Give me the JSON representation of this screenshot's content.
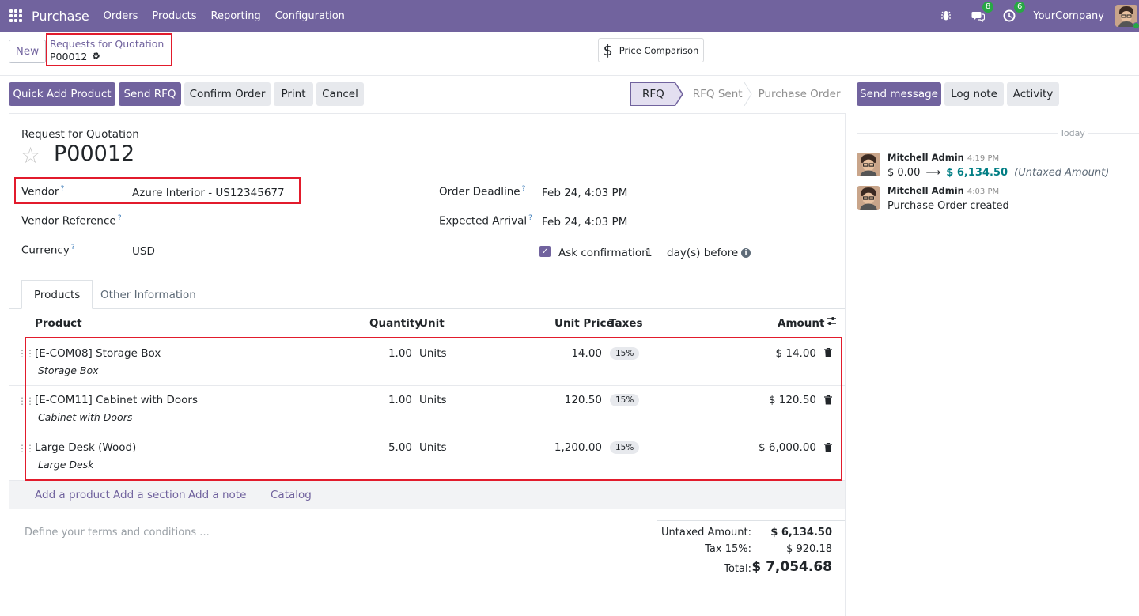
{
  "navbar": {
    "app_name": "Purchase",
    "menu": [
      "Orders",
      "Products",
      "Reporting",
      "Configuration"
    ],
    "messages_badge": "8",
    "activity_badge": "6",
    "company": "YourCompany"
  },
  "control": {
    "new_label": "New",
    "breadcrumb_parent": "Requests for Quotation",
    "breadcrumb_current": "P00012",
    "price_comparison_label": "Price Comparison"
  },
  "actions": {
    "quick_add": "Quick Add Product",
    "send_rfq": "Send RFQ",
    "confirm": "Confirm Order",
    "print": "Print",
    "cancel": "Cancel"
  },
  "status": {
    "stages": [
      "RFQ",
      "RFQ Sent",
      "Purchase Order"
    ],
    "active": "RFQ"
  },
  "form": {
    "doc_type": "Request for Quotation",
    "doc_name": "P00012",
    "vendor_label": "Vendor",
    "vendor_value": "Azure Interior - US12345677",
    "vendor_ref_label": "Vendor Reference",
    "currency_label": "Currency",
    "currency_value": "USD",
    "order_deadline_label": "Order Deadline",
    "order_deadline_value": "Feb 24, 4:03 PM",
    "expected_arrival_label": "Expected Arrival",
    "expected_arrival_value": "Feb 24, 4:03 PM",
    "ask_confirmation_label": "Ask confirmation",
    "ask_confirmation_days": "1",
    "days_before_label": "day(s) before",
    "help_mark": "?"
  },
  "tabs": [
    "Products",
    "Other Information"
  ],
  "table": {
    "headers": {
      "product": "Product",
      "quantity": "Quantity",
      "unit": "Unit",
      "unit_price": "Unit Price",
      "taxes": "Taxes",
      "amount": "Amount"
    },
    "rows": [
      {
        "product": "[E-COM08] Storage Box",
        "description": "Storage Box",
        "quantity": "1.00",
        "unit": "Units",
        "unit_price": "14.00",
        "tax": "15%",
        "amount": "$ 14.00"
      },
      {
        "product": "[E-COM11] Cabinet with Doors",
        "description": "Cabinet with Doors",
        "quantity": "1.00",
        "unit": "Units",
        "unit_price": "120.50",
        "tax": "15%",
        "amount": "$ 120.50"
      },
      {
        "product": "Large Desk (Wood)",
        "description": "Large Desk",
        "quantity": "5.00",
        "unit": "Units",
        "unit_price": "1,200.00",
        "tax": "15%",
        "amount": "$ 6,000.00"
      }
    ],
    "add_links": [
      "Add a product",
      "Add a section",
      "Add a note",
      "Catalog"
    ]
  },
  "footer": {
    "terms_placeholder": "Define your terms and conditions ...",
    "untaxed_label": "Untaxed Amount:",
    "untaxed_value": "$ 6,134.50",
    "tax_label": "Tax 15%:",
    "tax_value": "$ 920.18",
    "total_label": "Total:",
    "total_value": "$ 7,054.68"
  },
  "chatter": {
    "send_message": "Send message",
    "log_note": "Log note",
    "activity": "Activity",
    "today_label": "Today",
    "messages": [
      {
        "author": "Mitchell Admin",
        "time": "4:19 PM",
        "old_value": "$ 0.00",
        "new_value": "$ 6,134.50",
        "field": "(Untaxed Amount)"
      },
      {
        "author": "Mitchell Admin",
        "time": "4:03 PM",
        "body": "Purchase Order created"
      }
    ]
  },
  "colors": {
    "brand": "#71639e",
    "highlight_box": "#e21b2c",
    "badge": "#28a745"
  }
}
